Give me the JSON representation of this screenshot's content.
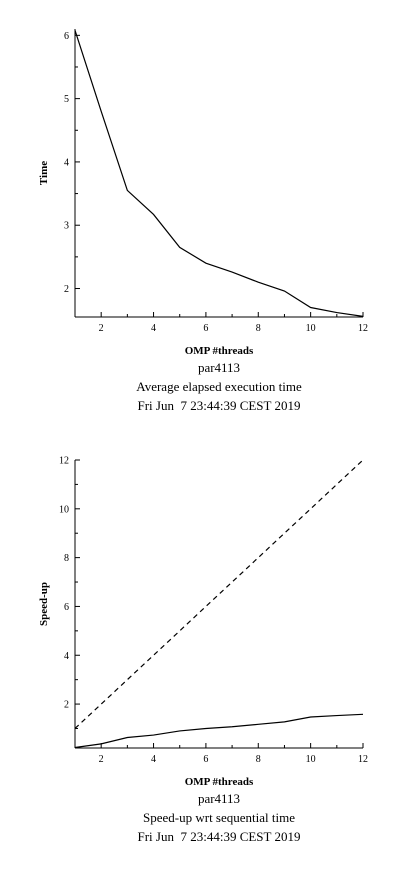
{
  "chart_data": [
    {
      "type": "line",
      "xlabel": "OMP #threads",
      "ylabel": "Time",
      "caption": [
        "par4113",
        "Average elapsed execution time",
        "Fri Jun  7 23:44:39 CEST 2019"
      ],
      "xlim": [
        1,
        12
      ],
      "ylim": [
        1.55,
        6.1
      ],
      "x_ticks": [
        2,
        4,
        6,
        8,
        10,
        12
      ],
      "y_ticks": [
        2,
        3,
        4,
        5,
        6
      ],
      "grid": false,
      "series": [
        {
          "style": "solid",
          "x": [
            1,
            2,
            3,
            4,
            5,
            6,
            7,
            8,
            9,
            10,
            11,
            12
          ],
          "values": [
            6.08,
            4.8,
            3.55,
            3.17,
            2.65,
            2.4,
            2.26,
            2.1,
            1.96,
            1.7,
            1.62,
            1.56
          ]
        }
      ]
    },
    {
      "type": "line",
      "xlabel": "OMP #threads",
      "ylabel": "Speed-up",
      "caption": [
        "par4113",
        "Speed-up wrt sequential time",
        "Fri Jun  7 23:44:39 CEST 2019"
      ],
      "xlim": [
        1,
        12
      ],
      "ylim": [
        0.2,
        12
      ],
      "x_ticks": [
        2,
        4,
        6,
        8,
        10,
        12
      ],
      "y_ticks": [
        2,
        4,
        6,
        8,
        10,
        12
      ],
      "grid": false,
      "series": [
        {
          "style": "dashed",
          "x": [
            1,
            12
          ],
          "values": [
            1,
            12
          ]
        },
        {
          "style": "solid",
          "x": [
            1,
            2,
            3,
            4,
            5,
            6,
            7,
            8,
            9,
            10,
            11,
            12
          ],
          "values": [
            0.22,
            0.37,
            0.63,
            0.73,
            0.9,
            1.0,
            1.07,
            1.17,
            1.27,
            1.47,
            1.53,
            1.58
          ]
        }
      ]
    }
  ]
}
